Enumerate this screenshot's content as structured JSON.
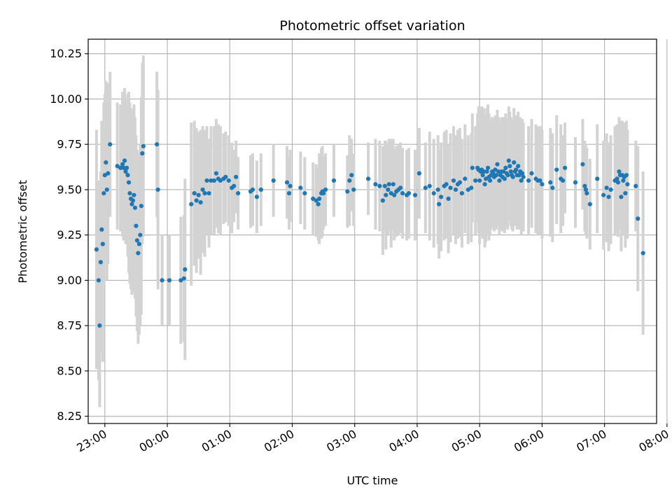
{
  "chart_data": {
    "type": "scatter",
    "title": "Photometric offset variation",
    "xlabel": "UTC time",
    "ylabel": "Photometric offset",
    "x_unit": "minutes relative to 00:00 UTC",
    "xlim": [
      -76,
      470
    ],
    "ylim": [
      8.21,
      10.33
    ],
    "x_ticks": [
      {
        "value": -60,
        "label": "23:00"
      },
      {
        "value": 0,
        "label": "00:00"
      },
      {
        "value": 60,
        "label": "01:00"
      },
      {
        "value": 120,
        "label": "02:00"
      },
      {
        "value": 180,
        "label": "03:00"
      },
      {
        "value": 240,
        "label": "04:00"
      },
      {
        "value": 300,
        "label": "05:00"
      },
      {
        "value": 360,
        "label": "06:00"
      },
      {
        "value": 420,
        "label": "07:00"
      },
      {
        "value": 480,
        "label": "08:00"
      }
    ],
    "y_ticks": [
      {
        "value": 8.25,
        "label": "8.25"
      },
      {
        "value": 8.5,
        "label": "8.50"
      },
      {
        "value": 8.75,
        "label": "8.75"
      },
      {
        "value": 9.0,
        "label": "9.00"
      },
      {
        "value": 9.25,
        "label": "9.25"
      },
      {
        "value": 9.5,
        "label": "9.50"
      },
      {
        "value": 9.75,
        "label": "9.75"
      },
      {
        "value": 10.0,
        "label": "10.00"
      },
      {
        "value": 10.25,
        "label": "10.25"
      }
    ],
    "grid": true,
    "x_tick_rotation": 30,
    "colors": {
      "points": "#1f77b4",
      "errorbars": "#d3d3d3",
      "grid": "#b0b0b0"
    },
    "series": [
      {
        "points": [
          [
            -68,
            9.17,
            0.66
          ],
          [
            -66,
            9.0,
            0.55
          ],
          [
            -65,
            8.75,
            0.45
          ],
          [
            -64,
            9.1,
            0.5
          ],
          [
            -63,
            9.28,
            0.6
          ],
          [
            -62,
            9.2,
            0.65
          ],
          [
            -61,
            9.48,
            0.5
          ],
          [
            -60,
            9.58,
            0.45
          ],
          [
            -59,
            9.65,
            0.45
          ],
          [
            -58,
            9.5,
            0.5
          ],
          [
            -57,
            9.59,
            0.5
          ],
          [
            -55,
            9.75,
            0.4
          ],
          [
            -48,
            9.63,
            0.35
          ],
          [
            -45,
            9.62,
            0.35
          ],
          [
            -43,
            9.64,
            0.4
          ],
          [
            -42,
            9.62,
            0.4
          ],
          [
            -41,
            9.66,
            0.4
          ],
          [
            -40,
            9.6,
            0.4
          ],
          [
            -39,
            9.62,
            0.35
          ],
          [
            -38,
            9.58,
            0.45
          ],
          [
            -37,
            9.54,
            0.5
          ],
          [
            -36,
            9.48,
            0.5
          ],
          [
            -35,
            9.45,
            0.5
          ],
          [
            -34,
            9.42,
            0.5
          ],
          [
            -33,
            9.44,
            0.5
          ],
          [
            -32,
            9.47,
            0.5
          ],
          [
            -31,
            9.4,
            0.5
          ],
          [
            -30,
            9.3,
            0.5
          ],
          [
            -29,
            9.22,
            0.5
          ],
          [
            -28,
            9.15,
            0.5
          ],
          [
            -27,
            9.2,
            0.5
          ],
          [
            -26,
            9.25,
            0.5
          ],
          [
            -25,
            9.41,
            0.6
          ],
          [
            -24,
            9.7,
            0.5
          ],
          [
            -23,
            9.74,
            0.5
          ],
          [
            -10,
            9.75,
            0.4
          ],
          [
            -9,
            9.5,
            0.55
          ],
          [
            -5,
            9.0,
            0.25
          ],
          [
            2,
            9.0,
            0.25
          ],
          [
            13,
            9.0,
            0.35
          ],
          [
            16,
            9.01,
            0.35
          ],
          [
            17,
            9.06,
            0.5
          ],
          [
            23,
            9.42,
            0.45
          ],
          [
            26,
            9.48,
            0.4
          ],
          [
            28,
            9.44,
            0.4
          ],
          [
            30,
            9.47,
            0.35
          ],
          [
            32,
            9.43,
            0.4
          ],
          [
            34,
            9.5,
            0.35
          ],
          [
            36,
            9.48,
            0.35
          ],
          [
            38,
            9.55,
            0.3
          ],
          [
            40,
            9.48,
            0.3
          ],
          [
            42,
            9.55,
            0.3
          ],
          [
            45,
            9.55,
            0.3
          ],
          [
            47,
            9.59,
            0.3
          ],
          [
            49,
            9.56,
            0.3
          ],
          [
            51,
            9.55,
            0.3
          ],
          [
            54,
            9.56,
            0.25
          ],
          [
            56,
            9.57,
            0.25
          ],
          [
            59,
            9.55,
            0.25
          ],
          [
            62,
            9.51,
            0.25
          ],
          [
            64,
            9.52,
            0.2
          ],
          [
            66,
            9.57,
            0.2
          ],
          [
            68,
            9.48,
            0.2
          ],
          [
            80,
            9.49,
            0.2
          ],
          [
            82,
            9.5,
            0.2
          ],
          [
            86,
            9.46,
            0.2
          ],
          [
            90,
            9.5,
            0.2
          ],
          [
            102,
            9.55,
            0.2
          ],
          [
            115,
            9.54,
            0.2
          ],
          [
            117,
            9.48,
            0.2
          ],
          [
            118,
            9.52,
            0.2
          ],
          [
            128,
            9.51,
            0.2
          ],
          [
            132,
            9.48,
            0.2
          ],
          [
            140,
            9.45,
            0.2
          ],
          [
            143,
            9.44,
            0.2
          ],
          [
            145,
            9.42,
            0.2
          ],
          [
            146,
            9.45,
            0.25
          ],
          [
            148,
            9.48,
            0.25
          ],
          [
            149,
            9.49,
            0.25
          ],
          [
            150,
            9.48,
            0.2
          ],
          [
            152,
            9.5,
            0.2
          ],
          [
            160,
            9.55,
            0.2
          ],
          [
            173,
            9.49,
            0.2
          ],
          [
            175,
            9.55,
            0.25
          ],
          [
            177,
            9.58,
            0.2
          ],
          [
            179,
            9.5,
            0.2
          ],
          [
            193,
            9.56,
            0.2
          ],
          [
            200,
            9.53,
            0.25
          ],
          [
            204,
            9.52,
            0.25
          ],
          [
            207,
            9.44,
            0.3
          ],
          [
            209,
            9.52,
            0.25
          ],
          [
            210,
            9.47,
            0.3
          ],
          [
            212,
            9.5,
            0.25
          ],
          [
            213,
            9.53,
            0.25
          ],
          [
            215,
            9.48,
            0.3
          ],
          [
            217,
            9.53,
            0.25
          ],
          [
            218,
            9.47,
            0.25
          ],
          [
            220,
            9.49,
            0.25
          ],
          [
            222,
            9.5,
            0.25
          ],
          [
            224,
            9.51,
            0.25
          ],
          [
            226,
            9.48,
            0.25
          ],
          [
            230,
            9.47,
            0.25
          ],
          [
            232,
            9.48,
            0.25
          ],
          [
            238,
            9.47,
            0.25
          ],
          [
            242,
            9.59,
            0.25
          ],
          [
            248,
            9.51,
            0.25
          ],
          [
            252,
            9.52,
            0.3
          ],
          [
            256,
            9.48,
            0.3
          ],
          [
            260,
            9.5,
            0.3
          ],
          [
            261,
            9.42,
            0.3
          ],
          [
            263,
            9.46,
            0.3
          ],
          [
            266,
            9.52,
            0.3
          ],
          [
            268,
            9.53,
            0.3
          ],
          [
            270,
            9.45,
            0.3
          ],
          [
            272,
            9.51,
            0.3
          ],
          [
            275,
            9.55,
            0.3
          ],
          [
            277,
            9.5,
            0.3
          ],
          [
            279,
            9.53,
            0.3
          ],
          [
            281,
            9.54,
            0.3
          ],
          [
            283,
            9.48,
            0.3
          ],
          [
            286,
            9.56,
            0.3
          ],
          [
            289,
            9.5,
            0.3
          ],
          [
            292,
            9.51,
            0.3
          ],
          [
            293,
            9.62,
            0.3
          ],
          [
            296,
            9.55,
            0.3
          ],
          [
            298,
            9.62,
            0.3
          ],
          [
            299,
            9.61,
            0.35
          ],
          [
            300,
            9.55,
            0.35
          ],
          [
            301,
            9.6,
            0.35
          ],
          [
            302,
            9.61,
            0.35
          ],
          [
            303,
            9.58,
            0.35
          ],
          [
            304,
            9.6,
            0.35
          ],
          [
            305,
            9.53,
            0.35
          ],
          [
            306,
            9.56,
            0.35
          ],
          [
            307,
            9.6,
            0.35
          ],
          [
            308,
            9.62,
            0.35
          ],
          [
            309,
            9.57,
            0.35
          ],
          [
            310,
            9.55,
            0.3
          ],
          [
            311,
            9.58,
            0.3
          ],
          [
            312,
            9.6,
            0.3
          ],
          [
            313,
            9.59,
            0.3
          ],
          [
            314,
            9.57,
            0.3
          ],
          [
            315,
            9.61,
            0.3
          ],
          [
            316,
            9.58,
            0.3
          ],
          [
            317,
            9.64,
            0.3
          ],
          [
            318,
            9.6,
            0.3
          ],
          [
            319,
            9.55,
            0.3
          ],
          [
            320,
            9.58,
            0.3
          ],
          [
            321,
            9.6,
            0.3
          ],
          [
            322,
            9.57,
            0.3
          ],
          [
            323,
            9.6,
            0.3
          ],
          [
            324,
            9.56,
            0.3
          ],
          [
            325,
            9.62,
            0.3
          ],
          [
            326,
            9.59,
            0.3
          ],
          [
            327,
            9.58,
            0.3
          ],
          [
            328,
            9.66,
            0.3
          ],
          [
            329,
            9.63,
            0.3
          ],
          [
            330,
            9.6,
            0.3
          ],
          [
            331,
            9.58,
            0.3
          ],
          [
            332,
            9.57,
            0.3
          ],
          [
            333,
            9.65,
            0.3
          ],
          [
            334,
            9.6,
            0.3
          ],
          [
            335,
            9.61,
            0.3
          ],
          [
            336,
            9.58,
            0.3
          ],
          [
            337,
            9.63,
            0.3
          ],
          [
            338,
            9.58,
            0.3
          ],
          [
            339,
            9.6,
            0.3
          ],
          [
            340,
            9.55,
            0.3
          ],
          [
            341,
            9.59,
            0.3
          ],
          [
            342,
            9.57,
            0.3
          ],
          [
            347,
            9.55,
            0.3
          ],
          [
            350,
            9.59,
            0.3
          ],
          [
            354,
            9.56,
            0.3
          ],
          [
            356,
            9.55,
            0.3
          ],
          [
            358,
            9.55,
            0.3
          ],
          [
            360,
            9.53,
            0.3
          ],
          [
            368,
            9.54,
            0.3
          ],
          [
            370,
            9.51,
            0.3
          ],
          [
            374,
            9.61,
            0.3
          ],
          [
            378,
            9.56,
            0.3
          ],
          [
            380,
            9.55,
            0.25
          ],
          [
            382,
            9.62,
            0.25
          ],
          [
            392,
            9.54,
            0.25
          ],
          [
            399,
            9.64,
            0.25
          ],
          [
            401,
            9.52,
            0.25
          ],
          [
            402,
            9.5,
            0.25
          ],
          [
            403,
            9.48,
            0.25
          ],
          [
            406,
            9.42,
            0.25
          ],
          [
            413,
            9.56,
            0.3
          ],
          [
            419,
            9.47,
            0.3
          ],
          [
            422,
            9.51,
            0.3
          ],
          [
            424,
            9.46,
            0.3
          ],
          [
            426,
            9.5,
            0.3
          ],
          [
            430,
            9.55,
            0.3
          ],
          [
            432,
            9.56,
            0.3
          ],
          [
            433,
            9.54,
            0.3
          ],
          [
            434,
            9.6,
            0.3
          ],
          [
            435,
            9.58,
            0.3
          ],
          [
            436,
            9.46,
            0.3
          ],
          [
            437,
            9.58,
            0.3
          ],
          [
            438,
            9.55,
            0.3
          ],
          [
            439,
            9.57,
            0.3
          ],
          [
            440,
            9.48,
            0.3
          ],
          [
            441,
            9.58,
            0.3
          ],
          [
            442,
            9.53,
            0.3
          ],
          [
            450,
            9.52,
            0.25
          ],
          [
            452,
            9.34,
            0.4
          ],
          [
            457,
            9.15,
            0.45
          ]
        ]
      }
    ]
  }
}
